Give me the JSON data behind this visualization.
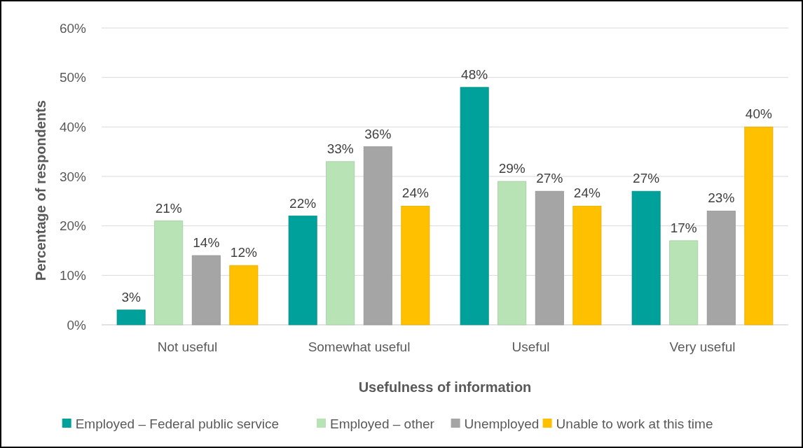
{
  "chart_data": {
    "type": "bar",
    "xlabel": "Usefulness of information",
    "ylabel": "Percentage of respondents",
    "categories": [
      "Not useful",
      "Somewhat useful",
      "Useful",
      "Very useful"
    ],
    "series": [
      {
        "name": "Employed – Federal public service",
        "color": "#00a19a",
        "values": [
          3,
          22,
          48,
          27
        ],
        "value_labels": [
          "3%",
          "22%",
          "48%",
          "27%"
        ]
      },
      {
        "name": "Employed – other",
        "color": "#b8e3b5",
        "values": [
          21,
          33,
          29,
          17
        ],
        "value_labels": [
          "21%",
          "33%",
          "29%",
          "17%"
        ]
      },
      {
        "name": "Unemployed",
        "color": "#a5a5a5",
        "values": [
          14,
          36,
          27,
          23
        ],
        "value_labels": [
          "14%",
          "36%",
          "27%",
          "23%"
        ]
      },
      {
        "name": "Unable to work at this time",
        "color": "#ffc000",
        "values": [
          12,
          24,
          24,
          40
        ],
        "value_labels": [
          "12%",
          "24%",
          "24%",
          "40%"
        ]
      }
    ],
    "ylim": [
      0,
      60
    ],
    "yticks": [
      {
        "value": 0,
        "label": "0%"
      },
      {
        "value": 10,
        "label": "10%"
      },
      {
        "value": 20,
        "label": "20%"
      },
      {
        "value": 30,
        "label": "30%"
      },
      {
        "value": 40,
        "label": "40%"
      },
      {
        "value": 50,
        "label": "50%"
      },
      {
        "value": 60,
        "label": "60%"
      }
    ],
    "grid": "y",
    "legend": "bottom"
  }
}
